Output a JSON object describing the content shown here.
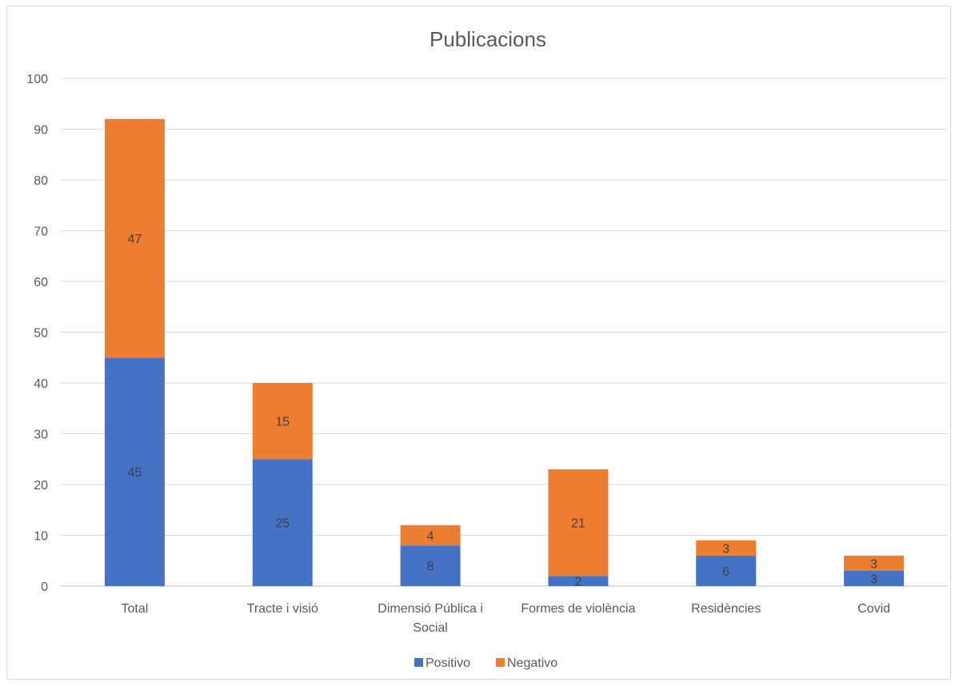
{
  "chart_data": {
    "type": "bar",
    "stacked": true,
    "title": "Publicacions",
    "categories": [
      [
        "Total"
      ],
      [
        "Tracte i visió"
      ],
      [
        "Dimensió Pública i",
        "Social"
      ],
      [
        "Formes de violència"
      ],
      [
        "Residències"
      ],
      [
        "Covid"
      ]
    ],
    "series": [
      {
        "name": "Positivo",
        "color": "#4472c4",
        "values": [
          45,
          25,
          8,
          2,
          6,
          3
        ]
      },
      {
        "name": "Negativo",
        "color": "#ed7d31",
        "values": [
          47,
          15,
          4,
          21,
          3,
          3
        ]
      }
    ],
    "ylim": [
      0,
      100
    ],
    "yticks": [
      0,
      10,
      20,
      30,
      40,
      50,
      60,
      70,
      80,
      90,
      100
    ],
    "grid": true,
    "legend_position": "bottom"
  }
}
